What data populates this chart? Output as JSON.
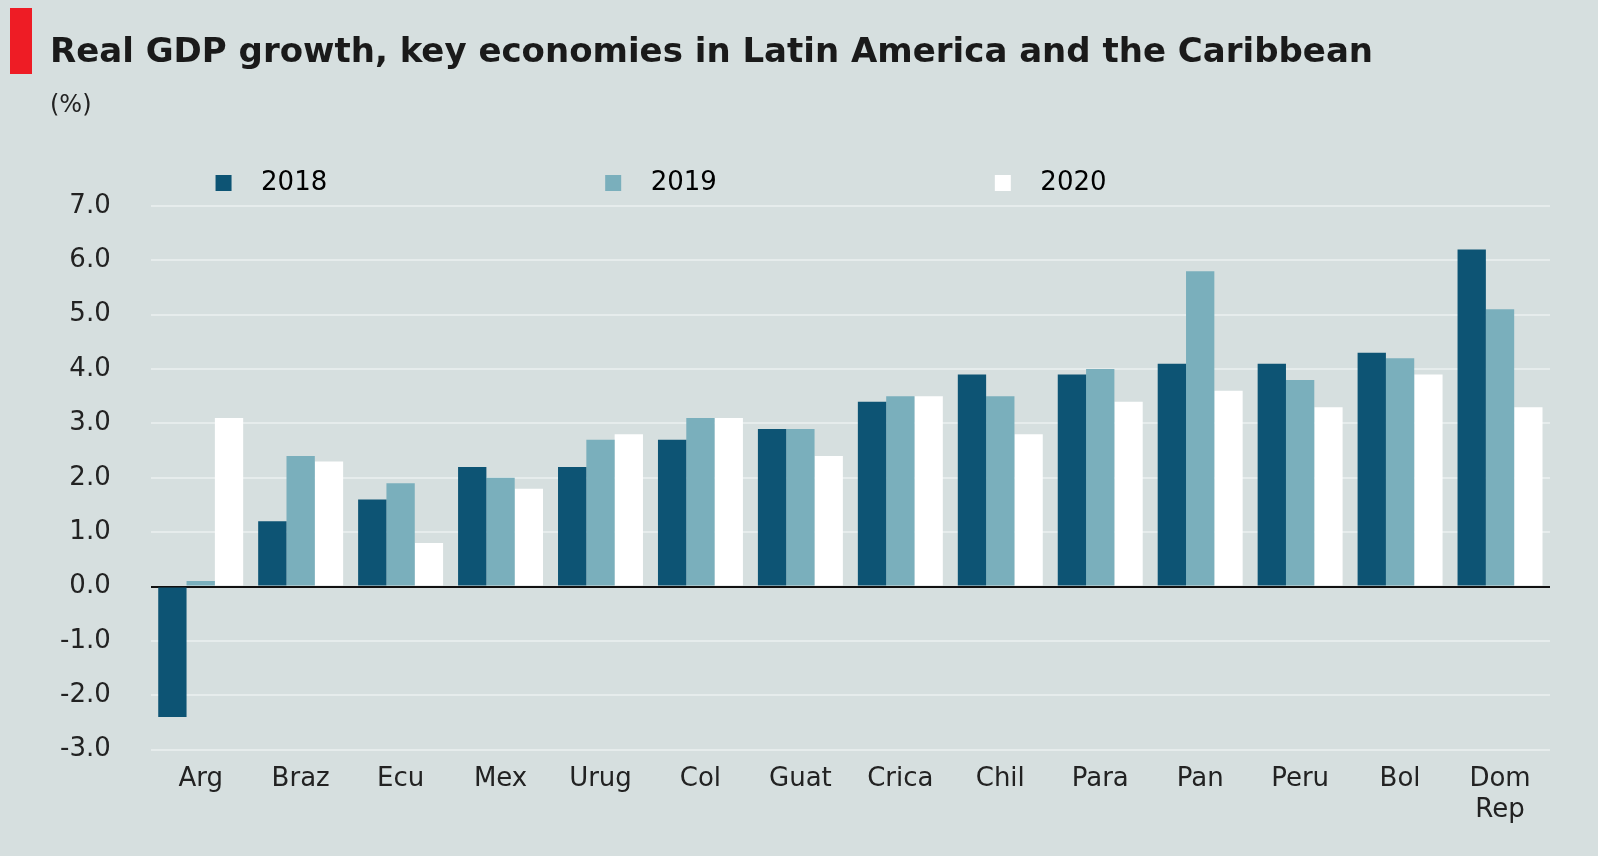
{
  "chart_data": {
    "type": "bar",
    "title": "Real GDP growth, key economies in Latin America and the Caribbean",
    "subtitle": "(%)",
    "categories": [
      "Arg",
      "Braz",
      "Ecu",
      "Mex",
      "Urug",
      "Col",
      "Guat",
      "Crica",
      "Chil",
      "Para",
      "Pan",
      "Peru",
      "Bol",
      "Dom Rep"
    ],
    "series": [
      {
        "name": "2018",
        "color": "#0d5474",
        "values": [
          -2.4,
          1.2,
          1.6,
          2.2,
          2.2,
          2.7,
          2.9,
          3.4,
          3.9,
          3.9,
          4.1,
          4.1,
          4.3,
          6.2
        ]
      },
      {
        "name": "2019",
        "color": "#7aafbc",
        "values": [
          0.1,
          2.4,
          1.9,
          2.0,
          2.7,
          3.1,
          2.9,
          3.5,
          3.5,
          4.0,
          5.8,
          3.8,
          4.2,
          5.1
        ]
      },
      {
        "name": "2020",
        "color": "#ffffff",
        "values": [
          3.1,
          2.3,
          0.8,
          1.8,
          2.8,
          3.1,
          2.4,
          3.5,
          2.8,
          3.4,
          3.6,
          3.3,
          3.9,
          3.3
        ]
      }
    ],
    "ylim": [
      -3,
      7
    ],
    "yticks": [
      {
        "value": -3,
        "label": "-3.0"
      },
      {
        "value": -2,
        "label": "-2.0"
      },
      {
        "value": -1,
        "label": "-1.0"
      },
      {
        "value": 0,
        "label": "0.0"
      },
      {
        "value": 1,
        "label": "1.0"
      },
      {
        "value": 2,
        "label": "2.0"
      },
      {
        "value": 3,
        "label": "3.0"
      },
      {
        "value": 4,
        "label": "4.0"
      },
      {
        "value": 5,
        "label": "5.0"
      },
      {
        "value": 6,
        "label": "6.0"
      },
      {
        "value": 7,
        "label": "7.0"
      }
    ],
    "grid": "y",
    "legend": "top"
  }
}
